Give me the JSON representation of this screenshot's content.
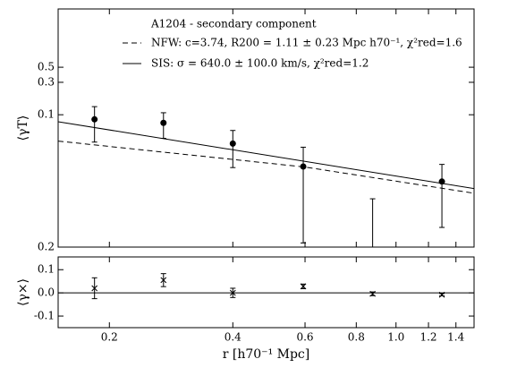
{
  "chart_data": [
    {
      "type": "errorbar",
      "title": "A1204 - secondary component",
      "ylabel": "⟨γT⟩",
      "xlim": [
        0.15,
        1.55
      ],
      "xlog": true,
      "ylim": [
        0.00113,
        3.6
      ],
      "ylog": true,
      "yticks": [
        0.1,
        0.3,
        0.5
      ],
      "annotations": [
        "0.2"
      ],
      "x": [
        0.184,
        0.271,
        0.4,
        0.594,
        0.877,
        1.294
      ],
      "values": [
        0.0856,
        0.076,
        0.0377,
        0.0173,
        0.0008,
        0.0104
      ],
      "errors": [
        0.046,
        0.031,
        0.021,
        0.016,
        0.005,
        0.0082
      ],
      "marker": "circle",
      "color": "#000000",
      "models": [
        {
          "name": "NFW: c=3.74, R200 = 1.11 ± 0.23 Mpc h70⁻¹, χ²red=1.6",
          "style": "dashed",
          "color": "#000000",
          "x": [
            0.15,
            0.4,
            0.6,
            1.55
          ],
          "values": [
            0.041,
            0.022,
            0.017,
            0.007
          ]
        },
        {
          "name": "SIS: σ = 640.0 ± 100.0 km/s, χ²red=1.2",
          "style": "solid",
          "color": "#000000",
          "x": [
            0.15,
            1.55
          ],
          "values": [
            0.079,
            0.0082
          ]
        }
      ]
    },
    {
      "type": "errorbar",
      "ylabel": "⟨γ×⟩",
      "xlabel": "r [h70⁻¹ Mpc]",
      "xlim": [
        0.15,
        1.55
      ],
      "xlog": true,
      "ylim": [
        -0.15,
        0.155
      ],
      "xticks": [
        0.2,
        0.4,
        0.6,
        0.8,
        {
          "value": 1,
          "label": "1.0"
        },
        1.2,
        1.4
      ],
      "yticks": [
        0.1,
        {
          "value": 0,
          "label": "0.0"
        },
        -0.1
      ],
      "hline": 0,
      "x": [
        0.184,
        0.271,
        0.4,
        0.594,
        0.877,
        1.294
      ],
      "values": [
        0.02,
        0.055,
        0.0,
        0.028,
        -0.004,
        -0.008
      ],
      "errors": [
        0.045,
        0.028,
        0.02,
        0.01,
        0.008,
        0.005
      ],
      "marker": "x",
      "color": "#000000"
    }
  ]
}
